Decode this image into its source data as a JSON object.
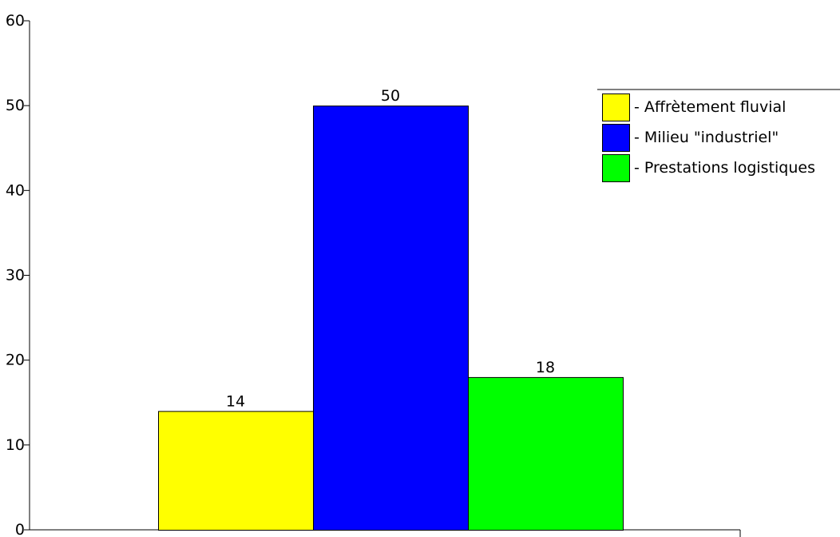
{
  "chart_data": {
    "type": "bar",
    "series": [
      {
        "name": "- Affrètement fluvial",
        "value": 14,
        "color": "#ffff00"
      },
      {
        "name": "- Milieu \"industriel\"",
        "value": 50,
        "color": "#0000ff"
      },
      {
        "name": "- Prestations logistiques",
        "value": 18,
        "color": "#00ff00"
      }
    ],
    "ylim": [
      0,
      60
    ],
    "yticks": [
      0,
      10,
      20,
      30,
      40,
      50,
      60
    ],
    "ytick_labels": [
      "0",
      "10",
      "20",
      "30",
      "40",
      "50",
      "60"
    ],
    "data_labels": [
      "14",
      "50",
      "18"
    ],
    "grid": false,
    "legend": "top-right"
  }
}
